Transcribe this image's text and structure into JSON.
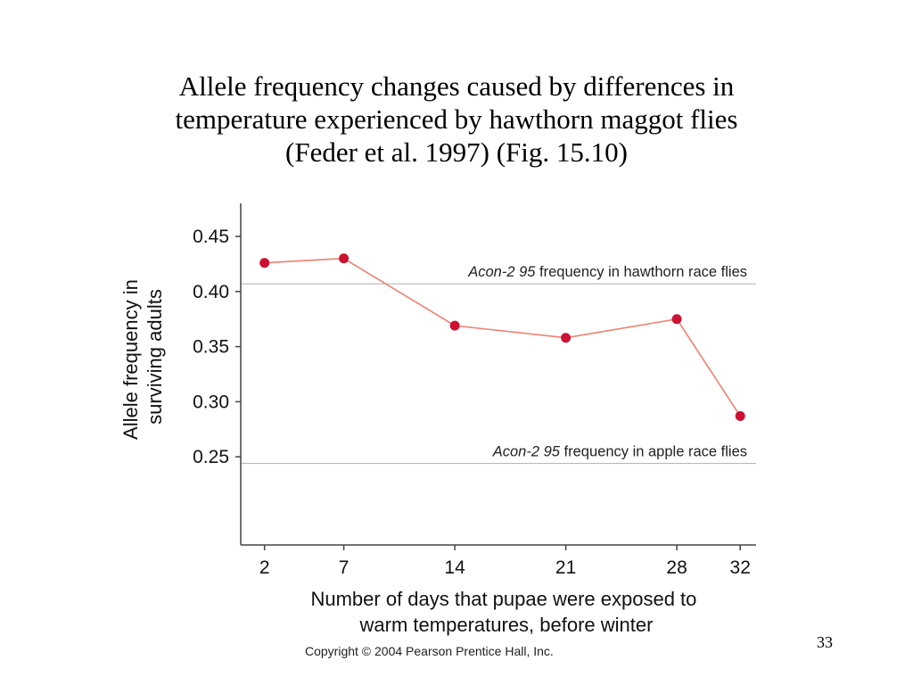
{
  "slide": {
    "title_lines": [
      "Allele frequency changes caused by differences in",
      "temperature experienced by hawthorn maggot flies",
      "(Feder et al. 1997) (Fig. 15.10)"
    ],
    "copyright": "Copyright © 2004 Pearson Prentice Hall, Inc.",
    "page_number": "33"
  },
  "colors": {
    "points": "#cc1133",
    "line": "#f08070",
    "reference_lines": "#b8b8b8",
    "axes": "#444444"
  },
  "chart_data": {
    "type": "line",
    "title": "",
    "x": [
      2,
      7,
      14,
      21,
      28,
      32
    ],
    "x_tick_labels": [
      "2",
      "7",
      "14",
      "21",
      "28",
      "32"
    ],
    "series": [
      {
        "values": [
          0.426,
          0.43,
          0.369,
          0.358,
          0.375,
          0.287
        ]
      }
    ],
    "ylabel_lines": [
      "Allele frequency in",
      "surviving adults"
    ],
    "xlabel_lines": [
      "Number of days that pupae were exposed to",
      "warm temperatures, before winter"
    ],
    "y_ticks": [
      0.25,
      0.3,
      0.35,
      0.4,
      0.45
    ],
    "y_tick_labels": [
      "0.25",
      "0.30",
      "0.35",
      "0.40",
      "0.45"
    ],
    "ylim": [
      0.17,
      0.48
    ],
    "xlim": [
      0.5,
      33
    ],
    "grid": false,
    "reference_lines": [
      {
        "value": 0.407,
        "label_italic": "Acon-2 95",
        "label_rest": " frequency in hawthorn race flies"
      },
      {
        "value": 0.244,
        "label_italic": "Acon-2 95",
        "label_rest": " frequency in apple race flies"
      }
    ]
  }
}
